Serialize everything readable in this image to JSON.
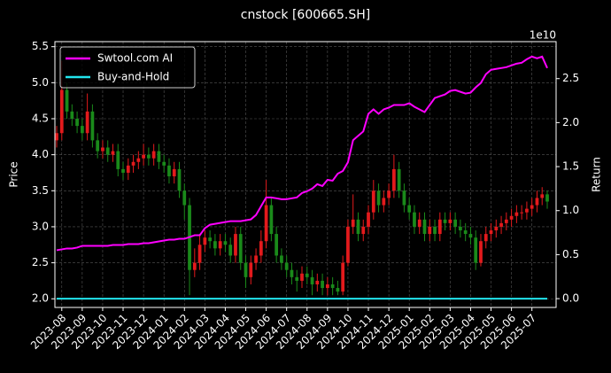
{
  "chart_data": {
    "type": "candlestick",
    "title": "cnstock [600665.SH]",
    "ylabel": "Price",
    "y2label": "Return",
    "y2_offset_label": "1e10",
    "categories": [
      null,
      "2023-08",
      null,
      null,
      null,
      "2023-09",
      null,
      null,
      null,
      "2023-10",
      null,
      null,
      null,
      "2023-11",
      null,
      null,
      null,
      "2023-12",
      null,
      null,
      null,
      "2024-01",
      null,
      null,
      null,
      "2024-02",
      null,
      null,
      null,
      "2024-03",
      null,
      null,
      null,
      "2024-04",
      null,
      null,
      null,
      "2024-05",
      null,
      null,
      null,
      "2024-06",
      null,
      null,
      null,
      "2024-07",
      null,
      null,
      null,
      "2024-08",
      null,
      null,
      null,
      "2024-09",
      null,
      null,
      null,
      "2024-10",
      null,
      null,
      null,
      "2024-11",
      null,
      null,
      null,
      "2024-12",
      null,
      null,
      null,
      "2025-01",
      null,
      null,
      null,
      "2025-02",
      null,
      null,
      null,
      "2025-03",
      null,
      null,
      null,
      "2025-04",
      null,
      null,
      null,
      "2025-05",
      null,
      null,
      null,
      "2025-06",
      null,
      null,
      null,
      "2025-07",
      null,
      null,
      null
    ],
    "open": [
      4.2,
      4.3,
      4.9,
      4.6,
      4.5,
      4.4,
      4.3,
      4.6,
      4.2,
      4.05,
      4.1,
      4.0,
      4.05,
      3.8,
      3.75,
      3.85,
      3.9,
      3.95,
      4.0,
      3.95,
      4.05,
      3.9,
      3.85,
      3.7,
      3.8,
      3.5,
      3.3,
      2.4,
      2.5,
      2.75,
      2.85,
      2.8,
      2.7,
      2.8,
      2.75,
      2.6,
      2.9,
      2.5,
      2.3,
      2.5,
      2.6,
      2.8,
      3.3,
      2.9,
      2.6,
      2.5,
      2.4,
      2.3,
      2.25,
      2.35,
      2.3,
      2.2,
      2.25,
      2.15,
      2.2,
      2.15,
      2.1,
      2.5,
      3.0,
      3.1,
      2.9,
      3.0,
      3.2,
      3.5,
      3.3,
      3.4,
      3.5,
      3.8,
      3.5,
      3.3,
      3.2,
      3.0,
      3.1,
      2.9,
      3.0,
      2.9,
      3.1,
      3.05,
      3.1,
      3.0,
      2.95,
      2.9,
      2.85,
      2.5,
      2.8,
      2.9,
      2.95,
      3.0,
      3.05,
      3.1,
      3.15,
      3.2,
      3.2,
      3.25,
      3.3,
      3.4,
      3.45
    ],
    "high": [
      4.4,
      5.3,
      5.0,
      4.7,
      4.6,
      4.5,
      4.85,
      4.7,
      4.3,
      4.2,
      4.2,
      4.15,
      4.15,
      3.9,
      3.95,
      4.0,
      4.05,
      4.15,
      4.1,
      4.15,
      4.15,
      4.0,
      3.95,
      3.9,
      3.9,
      3.6,
      3.4,
      2.7,
      2.9,
      2.95,
      2.95,
      2.9,
      2.9,
      2.9,
      2.85,
      3.0,
      3.0,
      2.6,
      2.6,
      2.7,
      2.95,
      3.65,
      3.4,
      3.0,
      2.7,
      2.6,
      2.5,
      2.4,
      2.45,
      2.45,
      2.4,
      2.35,
      2.35,
      2.3,
      2.3,
      2.25,
      2.6,
      3.1,
      3.45,
      3.2,
      3.1,
      3.3,
      3.65,
      3.6,
      3.5,
      3.6,
      4.0,
      3.9,
      3.6,
      3.4,
      3.3,
      3.2,
      3.2,
      3.1,
      3.1,
      3.2,
      3.2,
      3.2,
      3.2,
      3.1,
      3.05,
      3.0,
      2.95,
      2.9,
      3.0,
      3.05,
      3.1,
      3.15,
      3.2,
      3.25,
      3.3,
      3.3,
      3.35,
      3.4,
      3.5,
      3.55,
      3.5
    ],
    "low": [
      4.1,
      4.2,
      4.5,
      4.4,
      4.3,
      4.2,
      4.2,
      4.1,
      3.95,
      3.95,
      3.9,
      3.9,
      3.7,
      3.65,
      3.65,
      3.75,
      3.8,
      3.85,
      3.85,
      3.85,
      3.8,
      3.75,
      3.6,
      3.6,
      3.4,
      3.1,
      2.05,
      2.3,
      2.4,
      2.65,
      2.7,
      2.6,
      2.6,
      2.65,
      2.5,
      2.5,
      2.4,
      2.15,
      2.2,
      2.4,
      2.5,
      2.7,
      2.8,
      2.5,
      2.4,
      2.3,
      2.2,
      2.1,
      2.15,
      2.2,
      2.05,
      2.1,
      2.05,
      2.05,
      2.05,
      2.05,
      2.05,
      2.45,
      2.9,
      2.8,
      2.8,
      2.9,
      3.1,
      3.2,
      3.2,
      3.3,
      3.4,
      3.4,
      3.2,
      3.1,
      2.9,
      2.9,
      2.8,
      2.8,
      2.8,
      2.8,
      2.95,
      2.95,
      2.9,
      2.85,
      2.8,
      2.75,
      2.4,
      2.45,
      2.7,
      2.8,
      2.85,
      2.9,
      2.95,
      3.0,
      3.05,
      3.1,
      3.1,
      3.15,
      3.2,
      3.3,
      3.25
    ],
    "close": [
      4.3,
      4.9,
      4.6,
      4.5,
      4.4,
      4.3,
      4.6,
      4.2,
      4.05,
      4.1,
      4.0,
      4.05,
      3.8,
      3.75,
      3.85,
      3.9,
      3.95,
      4.0,
      3.95,
      4.05,
      3.9,
      3.85,
      3.7,
      3.8,
      3.5,
      3.3,
      2.4,
      2.5,
      2.75,
      2.85,
      2.8,
      2.7,
      2.8,
      2.75,
      2.6,
      2.9,
      2.5,
      2.3,
      2.5,
      2.6,
      2.8,
      3.3,
      2.9,
      2.6,
      2.5,
      2.4,
      2.3,
      2.25,
      2.35,
      2.3,
      2.2,
      2.25,
      2.15,
      2.2,
      2.15,
      2.1,
      2.5,
      3.0,
      3.1,
      2.9,
      3.0,
      3.2,
      3.5,
      3.3,
      3.4,
      3.5,
      3.8,
      3.5,
      3.3,
      3.2,
      3.0,
      3.1,
      2.9,
      3.0,
      2.9,
      3.1,
      3.05,
      3.1,
      3.0,
      2.95,
      2.9,
      2.85,
      2.5,
      2.8,
      2.9,
      2.95,
      3.0,
      3.05,
      3.1,
      3.15,
      3.2,
      3.2,
      3.25,
      3.3,
      3.4,
      3.45,
      3.35
    ],
    "up_color": "#e31a1c",
    "down_color": "#1a8a1a",
    "ylim": [
      1.88,
      5.57
    ],
    "yticks": [
      {
        "value": 2,
        "label": "2.0"
      },
      {
        "value": 2.5,
        "label": "2.5"
      },
      {
        "value": 3,
        "label": "3.0"
      },
      {
        "value": 3.5,
        "label": "3.5"
      },
      {
        "value": 4,
        "label": "4.0"
      },
      {
        "value": 4.5,
        "label": "4.5"
      },
      {
        "value": 5,
        "label": "5.0"
      },
      {
        "value": 5.5,
        "label": "5.5"
      }
    ],
    "y2lim": [
      -0.1,
      2.92
    ],
    "y2ticks": [
      {
        "value": 0,
        "label": "0.0"
      },
      {
        "value": 0.5,
        "label": "0.5"
      },
      {
        "value": 1,
        "label": "1.0"
      },
      {
        "value": 1.5,
        "label": "1.5"
      },
      {
        "value": 2,
        "label": "2.0"
      },
      {
        "value": 2.5,
        "label": "2.5"
      }
    ],
    "series": [
      {
        "name": "Swtool.com AI",
        "color": "#ff00ff",
        "axis": "y2",
        "values": [
          0.55,
          0.56,
          0.57,
          0.57,
          0.58,
          0.6,
          0.6,
          0.6,
          0.6,
          0.6,
          0.6,
          0.61,
          0.61,
          0.61,
          0.62,
          0.62,
          0.62,
          0.63,
          0.63,
          0.64,
          0.65,
          0.66,
          0.67,
          0.67,
          0.68,
          0.68,
          0.7,
          0.72,
          0.72,
          0.8,
          0.84,
          0.85,
          0.86,
          0.87,
          0.88,
          0.88,
          0.88,
          0.89,
          0.9,
          0.95,
          1.05,
          1.15,
          1.15,
          1.14,
          1.13,
          1.13,
          1.14,
          1.15,
          1.2,
          1.22,
          1.25,
          1.3,
          1.28,
          1.35,
          1.34,
          1.42,
          1.45,
          1.55,
          1.8,
          1.85,
          1.9,
          2.1,
          2.15,
          2.1,
          2.15,
          2.17,
          2.2,
          2.2,
          2.2,
          2.22,
          2.18,
          2.15,
          2.12,
          2.2,
          2.28,
          2.3,
          2.32,
          2.36,
          2.37,
          2.35,
          2.33,
          2.34,
          2.4,
          2.45,
          2.55,
          2.6,
          2.61,
          2.62,
          2.63,
          2.65,
          2.67,
          2.68,
          2.72,
          2.75,
          2.73,
          2.75,
          2.62
        ]
      },
      {
        "name": "Buy-and-Hold",
        "color": "#22e5ee",
        "axis": "y2",
        "values": [
          0,
          0,
          0,
          0,
          0,
          0,
          0,
          0,
          0,
          0,
          0,
          0,
          0,
          0,
          0,
          0,
          0,
          0,
          0,
          0,
          0,
          0,
          0,
          0,
          0,
          0,
          0,
          0,
          0,
          0,
          0,
          0,
          0,
          0,
          0,
          0,
          0,
          0,
          0,
          0,
          0,
          0,
          0,
          0,
          0,
          0,
          0,
          0,
          0,
          0,
          0,
          0,
          0,
          0,
          0,
          0,
          0,
          0,
          0,
          0,
          0,
          0,
          0,
          0,
          0,
          0,
          0,
          0,
          0,
          0,
          0,
          0,
          0,
          0,
          0,
          0,
          0,
          0,
          0,
          0,
          0,
          0,
          0,
          0,
          0,
          0,
          0,
          0,
          0,
          0,
          0,
          0,
          0,
          0,
          0,
          0,
          0
        ]
      }
    ],
    "grid": true,
    "legend": "upper left"
  }
}
